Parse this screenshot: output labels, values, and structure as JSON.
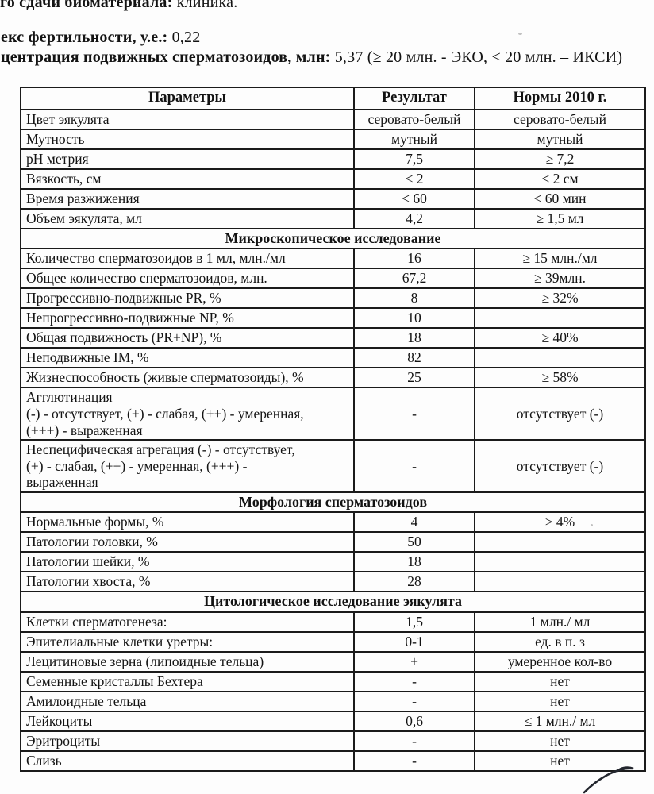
{
  "header": {
    "line1": {
      "label": "го сдачи биоматериала:",
      "value": "клиника."
    },
    "line2": {
      "label": "екс фертильности, у.е.:",
      "value": "0,22"
    },
    "line3": {
      "label": "центрация подвижных сперматозоидов, млн:",
      "value": "5,37 (≥ 20 млн. - ЭКО, < 20 млн. – ИКСИ)"
    }
  },
  "table": {
    "columns": [
      "Параметры",
      "Результат",
      "Нормы 2010 г."
    ],
    "rows": [
      {
        "param": "Цвет эякулята",
        "result": "серовато-белый",
        "norm": "серовато-белый"
      },
      {
        "param": "Мутность",
        "result": "мутный",
        "norm": "мутный"
      },
      {
        "param": "pH метрия",
        "result": "7,5",
        "norm": "≥ 7,2"
      },
      {
        "param": "Вязкость, см",
        "result": "< 2",
        "norm": "< 2 см"
      },
      {
        "param": "Время разжижения",
        "result": "< 60",
        "norm": "< 60 мин"
      },
      {
        "param": "Объем эякулята, мл",
        "result": "4,2",
        "norm": "≥ 1,5 мл"
      },
      {
        "section": "Микроскопическое исследование"
      },
      {
        "param": "Количество сперматозоидов в 1 мл, млн./мл",
        "result": "16",
        "norm": "≥ 15 млн./мл"
      },
      {
        "param": "Общее количество сперматозоидов, млн.",
        "result": "67,2",
        "norm": "≥ 39млн."
      },
      {
        "param": "Прогрессивно-подвижные PR, %",
        "result": "8",
        "norm": "≥ 32%"
      },
      {
        "param": "Непрогрессивно-подвижные NP, %",
        "result": "10",
        "norm": ""
      },
      {
        "param": "Общая подвижность (PR+NP), %",
        "result": "18",
        "norm": "≥ 40%"
      },
      {
        "param": "Неподвижные IM, %",
        "result": "82",
        "norm": ""
      },
      {
        "param": "Жизнеспособность (живые сперматозоиды), %",
        "result": "25",
        "norm": "≥ 58%"
      },
      {
        "param": "Агглютинация\n(-) - отсутствует, (+) - слабая, (++) - умеренная,\n(+++) - выраженная",
        "result": "-",
        "norm": "отсутствует (-)"
      },
      {
        "param": "Неспецифическая агрегация (-) - отсутствует,\n(+) - слабая, (++) - умеренная, (+++) -\nвыраженная",
        "result": "-",
        "norm": "отсутствует (-)"
      },
      {
        "section": "Морфология сперматозоидов"
      },
      {
        "param": "Нормальные формы, %",
        "result": "4",
        "norm": "≥ 4%"
      },
      {
        "param": "Патологии головки, %",
        "result": "50",
        "norm": ""
      },
      {
        "param": "Патологии шейки, %",
        "result": "18",
        "norm": ""
      },
      {
        "param": "Патологии хвоста, %",
        "result": "28",
        "norm": ""
      },
      {
        "section": "Цитологическое исследование эякулята"
      },
      {
        "param": "Клетки сперматогенеза:",
        "result": "1,5",
        "norm": "1 млн./ мл"
      },
      {
        "param": "Эпителиальные клетки уретры:",
        "result": "0-1",
        "norm": "ед. в п. з"
      },
      {
        "param": "Лецитиновые зерна (липоидные тельца)",
        "result": "+",
        "norm": "умеренное кол-во"
      },
      {
        "param": "Семенные кристаллы Бехтера",
        "result": "-",
        "norm": "нет"
      },
      {
        "param": "Амилоидные тельца",
        "result": "-",
        "norm": "нет"
      },
      {
        "param": "Лейкоциты",
        "result": "0,6",
        "norm": "≤ 1 млн./ мл"
      },
      {
        "param": "Эритроциты",
        "result": "-",
        "norm": "нет"
      },
      {
        "param": "Слизь",
        "result": "-",
        "norm": "нет"
      }
    ]
  },
  "colors": {
    "ink": "#131313",
    "border": "#1b1b1b",
    "paper": "#fdfdfd",
    "signature_stroke": "#23262e"
  }
}
